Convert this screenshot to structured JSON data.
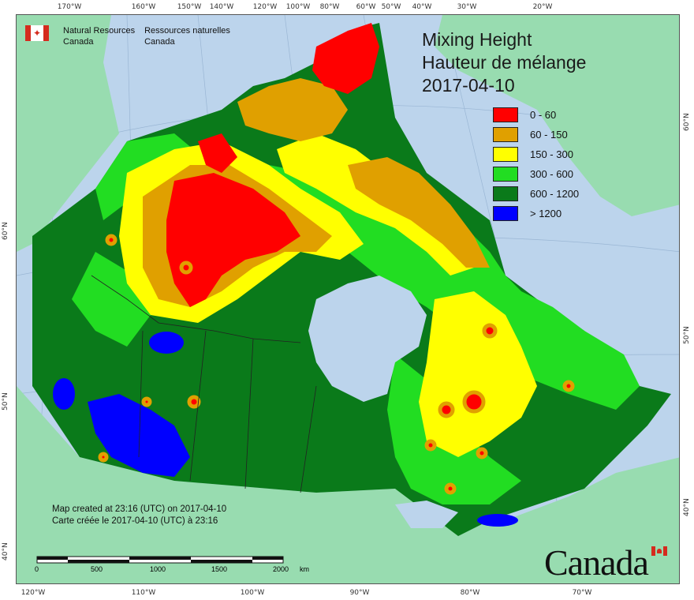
{
  "title": {
    "line1": "Mixing Height",
    "line2": "Hauteur de mélange",
    "date": "2017-04-10"
  },
  "agency": {
    "en_line1": "Natural Resources",
    "en_line2": "Canada",
    "fr_line1": "Ressources naturelles",
    "fr_line2": "Canada"
  },
  "legend": [
    {
      "label": "0 - 60",
      "color": "#ff0000"
    },
    {
      "label": "60 - 150",
      "color": "#e0a000"
    },
    {
      "label": "150 - 300",
      "color": "#ffff00"
    },
    {
      "label": "300 - 600",
      "color": "#22dd22"
    },
    {
      "label": "600 - 1200",
      "color": "#0a7a1a"
    },
    {
      "label": "> 1200",
      "color": "#0000ff"
    }
  ],
  "created": {
    "en": "Map created at 23:16 (UTC) on 2017-04-10",
    "fr": "Carte créée le 2017-04-10 (UTC) à 23:16"
  },
  "scale": {
    "labels": [
      "0",
      "500",
      "1000",
      "1500",
      "2000"
    ],
    "unit": "km"
  },
  "wordmark": "Canada",
  "ticks": {
    "top": [
      "170°W",
      "160°W",
      "150°W",
      "140°W",
      "120°W",
      "100°W",
      "80°W",
      "60°W",
      "50°W",
      "40°W",
      "30°W",
      "20°W"
    ],
    "bottom": [
      "120°W",
      "110°W",
      "100°W",
      "90°W",
      "80°W",
      "70°W"
    ],
    "left": [
      "60°N",
      "50°N",
      "40°N"
    ],
    "right": [
      "60°N",
      "50°N",
      "40°N"
    ]
  },
  "colors": {
    "ocean": "#bcd4ec",
    "land_outside": "#98dcb0"
  }
}
